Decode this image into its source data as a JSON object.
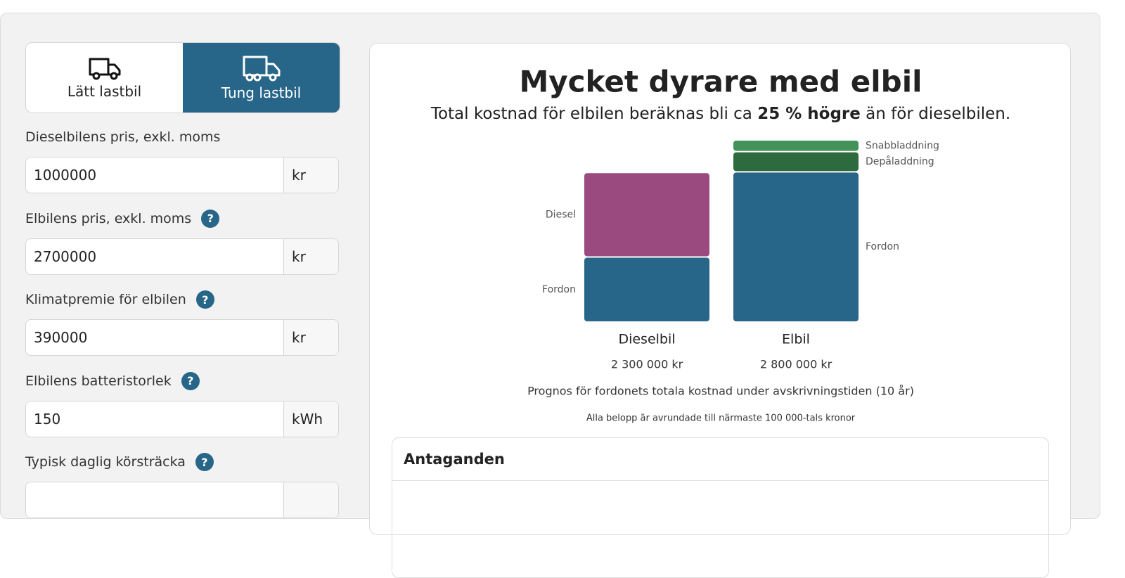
{
  "tabs": [
    {
      "label": "Lätt lastbil",
      "active": false
    },
    {
      "label": "Tung lastbil",
      "active": true
    }
  ],
  "help_icon": "?",
  "fields": [
    {
      "label": "Dieselbilens pris, exkl. moms",
      "value": "1000000",
      "unit": "kr",
      "help": false
    },
    {
      "label": "Elbilens pris, exkl. moms",
      "value": "2700000",
      "unit": "kr",
      "help": true
    },
    {
      "label": "Klimatpremie för elbilen",
      "value": "390000",
      "unit": "kr",
      "help": true
    },
    {
      "label": "Elbilens batteristorlek",
      "value": "150",
      "unit": "kWh",
      "help": true
    },
    {
      "label": "Typisk daglig körsträcka",
      "help": true
    }
  ],
  "chart_data": {
    "type": "stacked-bar",
    "title": "Mycket dyrare med elbil",
    "subtitle": [
      "Total kostnad för elbilen beräknas bli ca ",
      "25 % högre",
      " än för dieselbilen."
    ],
    "categories": [
      "Dieselbil",
      "Elbil"
    ],
    "total_labels": [
      "2 300 000 kr",
      "2 800 000 kr"
    ],
    "series": [
      {
        "name": "Fordon",
        "color": "#276688",
        "values": [
          1000000,
          2310000
        ]
      },
      {
        "name": "Diesel",
        "color": "#9b4a80",
        "values": [
          1300000,
          null
        ]
      },
      {
        "name": "Depåladdning",
        "color": "#2d6a3e",
        "values": [
          null,
          310000
        ]
      },
      {
        "name": "Snabbladdning",
        "color": "#43925a",
        "values": [
          null,
          180000
        ]
      }
    ],
    "caption": "Prognos för fordonets totala kostnad under avskrivningstiden (10 år)",
    "note": "Alla belopp är avrundade till närmaste 100 000-tals kronor"
  },
  "assumptions": {
    "title": "Antaganden"
  }
}
